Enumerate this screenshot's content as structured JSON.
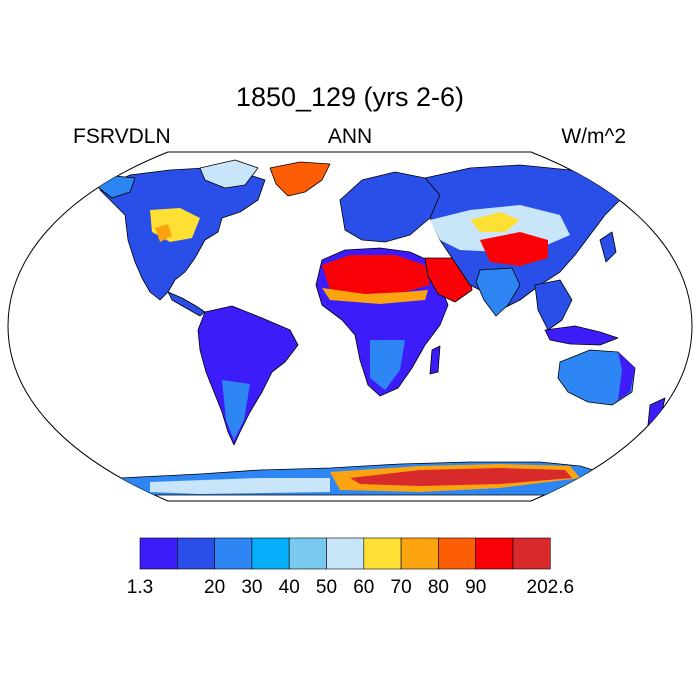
{
  "title": "1850_129 (yrs 2-6)",
  "variable": "FSRVDLN",
  "season": "ANN",
  "units": "W/m^2",
  "colorbar": {
    "labels": [
      "1.3",
      "20",
      "30",
      "40",
      "50",
      "60",
      "70",
      "80",
      "90",
      "202.6"
    ],
    "colors": [
      "#3c1dfa",
      "#2a4fe8",
      "#2d86f4",
      "#05aefb",
      "#79c8ef",
      "#c9e5f9",
      "#fde033",
      "#fca40f",
      "#fd5d05",
      "#f90207",
      "#d92a2b"
    ]
  },
  "colors": {
    "ocean": "#ffffff",
    "outline": "#000000"
  }
}
